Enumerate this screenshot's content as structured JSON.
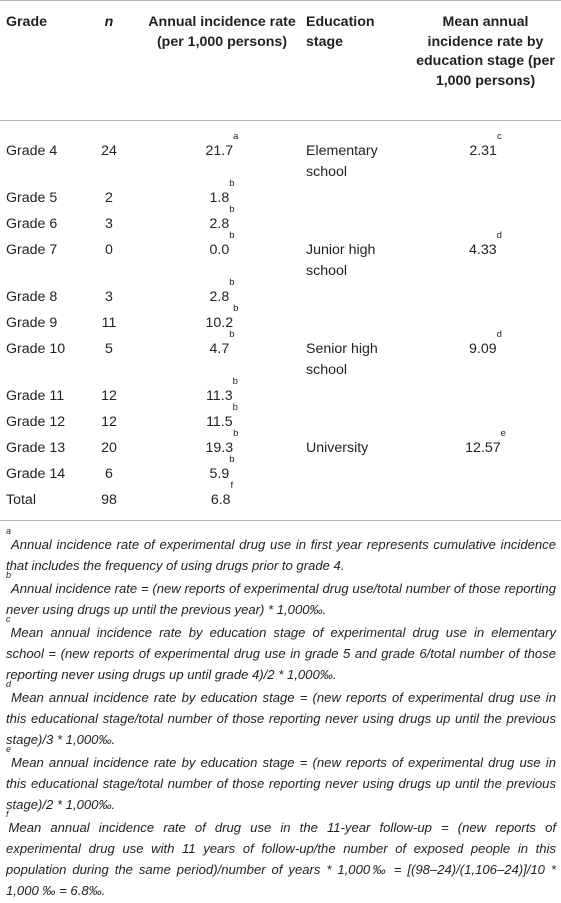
{
  "headers": {
    "grade": "Grade",
    "n": "n",
    "rate": "Annual incidence rate (per 1,000 persons)",
    "stage": "Education stage",
    "stage_rate": "Mean annual incidence rate by education stage (per 1,000 persons)"
  },
  "rows": [
    {
      "grade": "Grade 4",
      "n": "24",
      "rate": "21.7",
      "rate_sup": "a",
      "stage": "Elementary school",
      "stage_rate": "2.31",
      "stage_sup": "c"
    },
    {
      "grade": "Grade 5",
      "n": "2",
      "rate": "1.8",
      "rate_sup": "b",
      "stage": "",
      "stage_rate": "",
      "stage_sup": ""
    },
    {
      "grade": "Grade 6",
      "n": "3",
      "rate": "2.8",
      "rate_sup": "b",
      "stage": "",
      "stage_rate": "",
      "stage_sup": ""
    },
    {
      "grade": "Grade 7",
      "n": "0",
      "rate": "0.0",
      "rate_sup": "b",
      "stage": "Junior high school",
      "stage_rate": "4.33",
      "stage_sup": "d"
    },
    {
      "grade": "Grade 8",
      "n": "3",
      "rate": "2.8",
      "rate_sup": "b",
      "stage": "",
      "stage_rate": "",
      "stage_sup": ""
    },
    {
      "grade": "Grade 9",
      "n": "11",
      "rate": "10.2",
      "rate_sup": "b",
      "stage": "",
      "stage_rate": "",
      "stage_sup": ""
    },
    {
      "grade": "Grade 10",
      "n": "5",
      "rate": "4.7",
      "rate_sup": "b",
      "stage": "Senior high school",
      "stage_rate": "9.09",
      "stage_sup": "d"
    },
    {
      "grade": "Grade 11",
      "n": "12",
      "rate": "11.3",
      "rate_sup": "b",
      "stage": "",
      "stage_rate": "",
      "stage_sup": ""
    },
    {
      "grade": "Grade 12",
      "n": "12",
      "rate": "11.5",
      "rate_sup": "b",
      "stage": "",
      "stage_rate": "",
      "stage_sup": ""
    },
    {
      "grade": "Grade 13",
      "n": "20",
      "rate": "19.3",
      "rate_sup": "b",
      "stage": "University",
      "stage_rate": "12.57",
      "stage_sup": "e"
    },
    {
      "grade": "Grade 14",
      "n": "6",
      "rate": "5.9",
      "rate_sup": "b",
      "stage": "",
      "stage_rate": "",
      "stage_sup": ""
    },
    {
      "grade": "Total",
      "n": "98",
      "rate": "6.8",
      "rate_sup": "f",
      "stage": "",
      "stage_rate": "",
      "stage_sup": ""
    }
  ],
  "footnotes": [
    {
      "mark": "a",
      "text": "Annual incidence rate of experimental drug use in first year represents cumulative incidence that includes the frequency of using drugs prior to grade 4."
    },
    {
      "mark": "b",
      "text": "Annual incidence rate = (new reports of experimental drug use/total number of those reporting never using drugs up until the previous year) * 1,000‰."
    },
    {
      "mark": "c",
      "text": "Mean annual incidence rate by education stage of experimental drug use in elementary school = (new reports of experimental drug use in grade 5 and grade 6/total number of those reporting never using drugs up until grade 4)/2 * 1,000‰."
    },
    {
      "mark": "d",
      "text": "Mean annual incidence rate by education stage = (new reports of experimental drug use in this educational stage/total number of those reporting never using drugs up until the previous stage)/3 * 1,000‰."
    },
    {
      "mark": "e",
      "text": "Mean annual incidence rate by education stage = (new reports of experimental drug use in this educational stage/total number of those reporting never using drugs up until the previous stage)/2 * 1,000‰."
    },
    {
      "mark": "f",
      "text": "Mean annual incidence rate of drug use in the 11-year follow-up = (new reports of experimental drug use with 11 years of follow-up/the number of exposed people in this population during the same period)/number of years * 1,000‰ = [(98–24)/(1,106–24)]/10 * 1,000 ‰ = 6.8‰."
    }
  ]
}
